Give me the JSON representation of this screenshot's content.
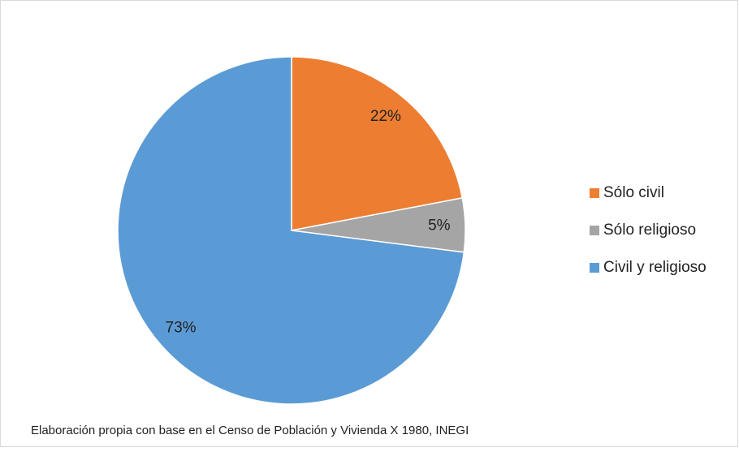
{
  "chart_data": {
    "type": "pie",
    "categories": [
      "Sólo civil",
      "Sólo religioso",
      "Civil y religioso"
    ],
    "values": [
      22,
      5,
      73
    ],
    "value_labels": [
      "22%",
      "5%",
      "73%"
    ],
    "colors": [
      "#ed7d31",
      "#a5a5a5",
      "#5b9bd5"
    ],
    "legend": "right",
    "note": "Elaboración propia con base en el Censo de Población y Vivienda X 1980, INEGI"
  }
}
